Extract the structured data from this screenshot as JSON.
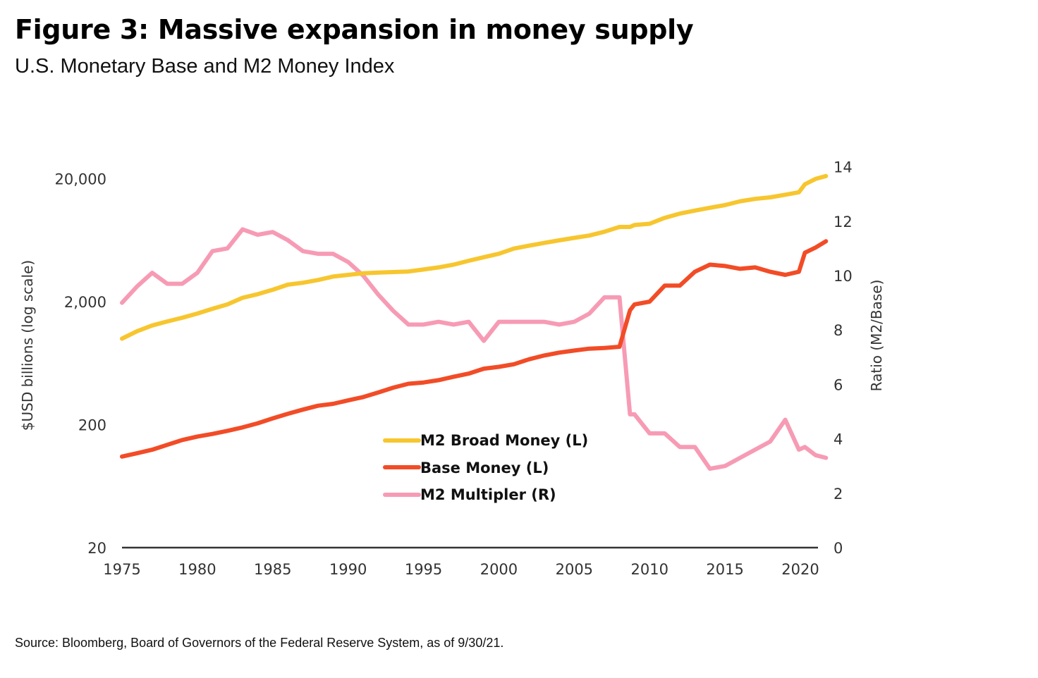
{
  "title": "Figure 3: Massive expansion in money supply",
  "subtitle": "U.S. Monetary Base and M2 Money Index",
  "source": "Source: Bloomberg, Board of Governors of the Federal Reserve System, as of 9/30/21.",
  "colors": {
    "m2": "#F7C62F",
    "base": "#F24C27",
    "multiplier": "#F79BB5",
    "axis": "#333333"
  },
  "chart_data": {
    "type": "line",
    "title": "Figure 3: Massive expansion in money supply",
    "subtitle": "U.S. Monetary Base and M2 Money Index",
    "xlabel": "",
    "ylabel": "$USD billions (log scale)",
    "ylabel_right": "Ratio (M2/Base)",
    "xlim": [
      1975,
      2021.7
    ],
    "ylim": [
      20,
      20000
    ],
    "yscale": "log",
    "ylim_right": [
      0,
      14
    ],
    "x_ticks": [
      "1975",
      "1980",
      "1985",
      "1990",
      "1995",
      "2000",
      "2005",
      "2010",
      "2015",
      "2020"
    ],
    "y_ticks": [
      "20",
      "200",
      "2,000",
      "20,000"
    ],
    "y_ticks_right": [
      "0",
      "2",
      "4",
      "6",
      "8",
      "10",
      "12",
      "14"
    ],
    "grid": false,
    "legend": {
      "position": "center-bottom",
      "entries": [
        "M2 Broad Money (L)",
        "Base Money (L)",
        "M2 Multipler (R)"
      ]
    },
    "x": [
      1975,
      1976,
      1977,
      1978,
      1979,
      1980,
      1981,
      1982,
      1983,
      1984,
      1985,
      1986,
      1987,
      1988,
      1989,
      1990,
      1991,
      1992,
      1993,
      1994,
      1995,
      1996,
      1997,
      1998,
      1999,
      2000,
      2001,
      2002,
      2003,
      2004,
      2005,
      2006,
      2007,
      2008,
      2008.7,
      2009,
      2010,
      2011,
      2012,
      2013,
      2014,
      2015,
      2016,
      2017,
      2018,
      2019,
      2019.9,
      2020.3,
      2021,
      2021.7
    ],
    "series": [
      {
        "name": "M2 Broad Money (L)",
        "axis": "left",
        "values": [
          1000,
          1150,
          1280,
          1380,
          1480,
          1600,
          1750,
          1900,
          2150,
          2300,
          2500,
          2750,
          2850,
          3000,
          3200,
          3300,
          3400,
          3450,
          3480,
          3520,
          3650,
          3800,
          4000,
          4300,
          4600,
          4900,
          5400,
          5700,
          6000,
          6300,
          6600,
          6900,
          7400,
          8100,
          8100,
          8400,
          8600,
          9600,
          10400,
          11000,
          11600,
          12200,
          13100,
          13700,
          14100,
          14800,
          15500,
          18000,
          19900,
          21000
        ]
      },
      {
        "name": "Base Money (L)",
        "axis": "left",
        "values": [
          110,
          117,
          125,
          137,
          150,
          160,
          168,
          178,
          190,
          205,
          225,
          245,
          265,
          285,
          295,
          315,
          335,
          365,
          400,
          430,
          440,
          460,
          490,
          520,
          570,
          590,
          620,
          680,
          730,
          770,
          800,
          830,
          840,
          860,
          1700,
          1900,
          2000,
          2700,
          2700,
          3500,
          4000,
          3900,
          3700,
          3800,
          3500,
          3300,
          3500,
          5000,
          5500,
          6200
        ]
      },
      {
        "name": "M2 Multipler (R)",
        "axis": "right",
        "values": [
          9.0,
          9.6,
          10.1,
          9.7,
          9.7,
          10.1,
          10.9,
          11.0,
          11.7,
          11.5,
          11.6,
          11.3,
          10.9,
          10.8,
          10.8,
          10.5,
          10.0,
          9.3,
          8.7,
          8.2,
          8.2,
          8.3,
          8.2,
          8.3,
          7.6,
          8.3,
          8.3,
          8.3,
          8.3,
          8.2,
          8.3,
          8.6,
          9.2,
          9.2,
          4.9,
          4.9,
          4.2,
          4.2,
          3.7,
          3.7,
          2.9,
          3.0,
          3.3,
          3.6,
          3.9,
          4.7,
          3.6,
          3.7,
          3.4,
          3.3
        ]
      }
    ]
  }
}
